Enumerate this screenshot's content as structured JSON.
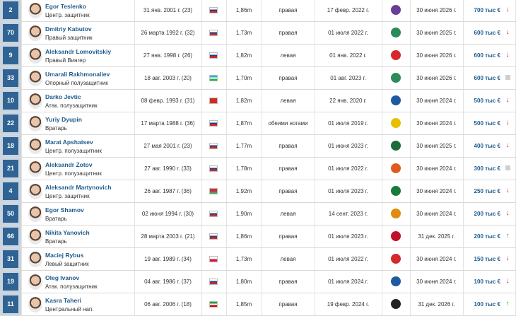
{
  "table": {
    "rows": [
      {
        "number": "2",
        "name": "Egor Teslenko",
        "position": "Центр. защитник",
        "birth": "31 янв. 2001 г. (23)",
        "height": "1,86m",
        "foot": "правая",
        "joined": "17 февр. 2022 г.",
        "contract": "30 июня 2026 г.",
        "value": "700 тыс €",
        "trend": "down"
      },
      {
        "number": "70",
        "name": "Dmitriy Kabutov",
        "position": "Правый защитник",
        "birth": "26 марта 1992 г. (32)",
        "height": "1,73m",
        "foot": "правая",
        "joined": "01 июля 2022 г.",
        "contract": "30 июня 2025 г.",
        "value": "600 тыс €",
        "trend": "down"
      },
      {
        "number": "9",
        "name": "Aleksandr Lomovitskiy",
        "position": "Правый Вингер",
        "birth": "27 янв. 1998 г. (26)",
        "height": "1,82m",
        "foot": "левая",
        "joined": "01 янв. 2022 г.",
        "contract": "30 июня 2026 г.",
        "value": "600 тыс €",
        "trend": "down"
      },
      {
        "number": "33",
        "name": "Umarali Rakhmonaliev",
        "position": "Опорный полузащитник",
        "birth": "18 авг. 2003 г. (20)",
        "height": "1,70m",
        "foot": "правая",
        "joined": "01 авг. 2023 г.",
        "contract": "30 июня 2026 г.",
        "value": "600 тыс €",
        "trend": "none"
      },
      {
        "number": "10",
        "name": "Darko Jevtic",
        "position": "Атак. полузащитник",
        "birth": "08 февр. 1993 г. (31)",
        "height": "1,82m",
        "foot": "левая",
        "joined": "22 янв. 2020 г.",
        "contract": "30 июня 2024 г.",
        "value": "500 тыс €",
        "trend": "down"
      },
      {
        "number": "22",
        "name": "Yuriy Dyupin",
        "position": "Вратарь",
        "birth": "17 марта 1988 г. (36)",
        "height": "1,87m",
        "foot": "обеими ногами",
        "joined": "01 июля 2019 г.",
        "contract": "30 июня 2024 г.",
        "value": "500 тыс €",
        "trend": "down"
      },
      {
        "number": "18",
        "name": "Marat Apshatsev",
        "position": "Центр. полузащитник",
        "birth": "27 мая 2001 г. (23)",
        "height": "1,77m",
        "foot": "правая",
        "joined": "01 июня 2023 г.",
        "contract": "30 июня 2025 г.",
        "value": "400 тыс €",
        "trend": "down"
      },
      {
        "number": "21",
        "name": "Aleksandr Zotov",
        "position": "Центр. полузащитник",
        "birth": "27 авг. 1990 г. (33)",
        "height": "1,78m",
        "foot": "правая",
        "joined": "01 июля 2022 г.",
        "contract": "30 июня 2024 г.",
        "value": "300 тыс €",
        "trend": "none"
      },
      {
        "number": "4",
        "name": "Aleksandr Martynovich",
        "position": "Центр. защитник",
        "birth": "26 авг. 1987 г. (36)",
        "height": "1,92m",
        "foot": "правая",
        "joined": "01 июля 2023 г.",
        "contract": "30 июня 2024 г.",
        "value": "250 тыс €",
        "trend": "down"
      },
      {
        "number": "50",
        "name": "Egor Shamov",
        "position": "Вратарь",
        "birth": "02 июня 1994 г. (30)",
        "height": "1,90m",
        "foot": "левая",
        "joined": "14 сент. 2023 г.",
        "contract": "30 июня 2024 г.",
        "value": "200 тыс €",
        "trend": "down"
      },
      {
        "number": "66",
        "name": "Nikita Yanovich",
        "position": "Вратарь",
        "birth": "28 марта 2003 г. (21)",
        "height": "1,86m",
        "foot": "правая",
        "joined": "01 июля 2023 г.",
        "contract": "31 дек. 2025 г.",
        "value": "200 тыс €",
        "trend": "up"
      },
      {
        "number": "31",
        "name": "Maciej Rybus",
        "position": "Левый защитник",
        "birth": "19 авг. 1989 г. (34)",
        "height": "1,73m",
        "foot": "левая",
        "joined": "01 июля 2022 г.",
        "contract": "30 июня 2024 г.",
        "value": "150 тыс €",
        "trend": "down"
      },
      {
        "number": "19",
        "name": "Oleg Ivanov",
        "position": "Атак. полузащитник",
        "birth": "04 авг. 1986 г. (37)",
        "height": "1,80m",
        "foot": "правая",
        "joined": "01 июля 2024 г.",
        "contract": "30 июня 2024 г.",
        "value": "100 тыс €",
        "trend": "down"
      },
      {
        "number": "11",
        "name": "Kasra Taheri",
        "position": "Центральный нап.",
        "birth": "06 авг. 2006 г. (18)",
        "height": "1,85m",
        "foot": "правая",
        "joined": "19 февр. 2024 г.",
        "contract": "31 дек. 2026 г.",
        "value": "100 тыс €",
        "trend": "up"
      }
    ]
  }
}
